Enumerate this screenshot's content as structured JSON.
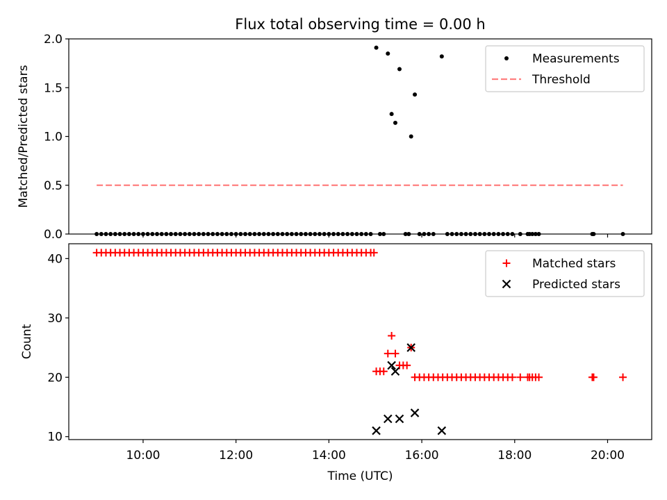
{
  "chart_data": [
    {
      "type": "scatter",
      "title": "Flux total observing time = 0.00 h",
      "ylabel": "Matched/Predicted stars",
      "xlabel": "",
      "xlim": [
        8.4,
        20.95
      ],
      "ylim": [
        0,
        2.0
      ],
      "yticks": [
        0.0,
        0.5,
        1.0,
        1.5,
        2.0
      ],
      "ytick_labels": [
        "0.0",
        "0.5",
        "1.0",
        "1.5",
        "2.0"
      ],
      "xticks": [
        10,
        12,
        14,
        16,
        18,
        20
      ],
      "legend_position": "top-right",
      "series": [
        {
          "name": "Measurements",
          "marker": "dot",
          "color": "#000000",
          "points": [
            [
              15.02,
              1.91
            ],
            [
              15.27,
              1.85
            ],
            [
              15.52,
              1.69
            ],
            [
              15.35,
              1.23
            ],
            [
              15.43,
              1.14
            ],
            [
              15.77,
              1.0
            ],
            [
              15.85,
              1.43
            ],
            [
              16.43,
              1.82
            ],
            [
              9.0,
              0.0
            ],
            [
              9.1,
              0.0
            ],
            [
              9.2,
              0.0
            ],
            [
              9.3,
              0.0
            ],
            [
              9.4,
              0.0
            ],
            [
              9.5,
              0.0
            ],
            [
              9.6,
              0.0
            ],
            [
              9.7,
              0.0
            ],
            [
              9.8,
              0.0
            ],
            [
              9.9,
              0.0
            ],
            [
              10.0,
              0.0
            ],
            [
              10.1,
              0.0
            ],
            [
              10.2,
              0.0
            ],
            [
              10.3,
              0.0
            ],
            [
              10.4,
              0.0
            ],
            [
              10.5,
              0.0
            ],
            [
              10.6,
              0.0
            ],
            [
              10.7,
              0.0
            ],
            [
              10.8,
              0.0
            ],
            [
              10.9,
              0.0
            ],
            [
              11.0,
              0.0
            ],
            [
              11.1,
              0.0
            ],
            [
              11.2,
              0.0
            ],
            [
              11.3,
              0.0
            ],
            [
              11.4,
              0.0
            ],
            [
              11.5,
              0.0
            ],
            [
              11.6,
              0.0
            ],
            [
              11.7,
              0.0
            ],
            [
              11.8,
              0.0
            ],
            [
              11.9,
              0.0
            ],
            [
              12.0,
              0.0
            ],
            [
              12.1,
              0.0
            ],
            [
              12.2,
              0.0
            ],
            [
              12.3,
              0.0
            ],
            [
              12.4,
              0.0
            ],
            [
              12.5,
              0.0
            ],
            [
              12.6,
              0.0
            ],
            [
              12.7,
              0.0
            ],
            [
              12.8,
              0.0
            ],
            [
              12.9,
              0.0
            ],
            [
              13.0,
              0.0
            ],
            [
              13.1,
              0.0
            ],
            [
              13.2,
              0.0
            ],
            [
              13.3,
              0.0
            ],
            [
              13.4,
              0.0
            ],
            [
              13.5,
              0.0
            ],
            [
              13.6,
              0.0
            ],
            [
              13.7,
              0.0
            ],
            [
              13.8,
              0.0
            ],
            [
              13.9,
              0.0
            ],
            [
              14.0,
              0.0
            ],
            [
              14.1,
              0.0
            ],
            [
              14.2,
              0.0
            ],
            [
              14.3,
              0.0
            ],
            [
              14.4,
              0.0
            ],
            [
              14.5,
              0.0
            ],
            [
              14.6,
              0.0
            ],
            [
              14.7,
              0.0
            ],
            [
              14.8,
              0.0
            ],
            [
              14.9,
              0.0
            ],
            [
              15.1,
              0.0
            ],
            [
              15.18,
              0.0
            ],
            [
              15.65,
              0.0
            ],
            [
              15.72,
              0.0
            ],
            [
              15.95,
              0.0
            ],
            [
              16.05,
              0.0
            ],
            [
              16.15,
              0.0
            ],
            [
              16.25,
              0.0
            ],
            [
              16.55,
              0.0
            ],
            [
              16.65,
              0.0
            ],
            [
              16.75,
              0.0
            ],
            [
              16.85,
              0.0
            ],
            [
              16.95,
              0.0
            ],
            [
              17.05,
              0.0
            ],
            [
              17.15,
              0.0
            ],
            [
              17.25,
              0.0
            ],
            [
              17.35,
              0.0
            ],
            [
              17.45,
              0.0
            ],
            [
              17.55,
              0.0
            ],
            [
              17.65,
              0.0
            ],
            [
              17.75,
              0.0
            ],
            [
              17.85,
              0.0
            ],
            [
              17.95,
              0.0
            ],
            [
              18.12,
              0.0
            ],
            [
              18.28,
              0.0
            ],
            [
              18.32,
              0.0
            ],
            [
              18.38,
              0.0
            ],
            [
              18.45,
              0.0
            ],
            [
              18.52,
              0.0
            ],
            [
              19.67,
              0.0
            ],
            [
              19.7,
              0.0
            ],
            [
              20.33,
              0.0
            ]
          ]
        },
        {
          "name": "Threshold",
          "marker": "dashed-line",
          "color": "#ff7f7f",
          "points": [
            [
              9.0,
              0.5
            ],
            [
              20.33,
              0.5
            ]
          ]
        }
      ]
    },
    {
      "type": "scatter",
      "title": "",
      "ylabel": "Count",
      "xlabel": "Time (UTC)",
      "xlim": [
        8.4,
        20.95
      ],
      "ylim": [
        9.5,
        42.5
      ],
      "yticks": [
        10,
        20,
        30,
        40
      ],
      "ytick_labels": [
        "10",
        "20",
        "30",
        "40"
      ],
      "xticks": [
        10,
        12,
        14,
        16,
        18,
        20
      ],
      "xtick_labels": [
        "10:00",
        "12:00",
        "14:00",
        "16:00",
        "18:00",
        "20:00"
      ],
      "legend_position": "top-right",
      "series": [
        {
          "name": "Matched stars",
          "marker": "plus",
          "color": "#ff0000",
          "points": [
            [
              9.0,
              41
            ],
            [
              9.1,
              41
            ],
            [
              9.2,
              41
            ],
            [
              9.3,
              41
            ],
            [
              9.4,
              41
            ],
            [
              9.5,
              41
            ],
            [
              9.6,
              41
            ],
            [
              9.7,
              41
            ],
            [
              9.8,
              41
            ],
            [
              9.9,
              41
            ],
            [
              10.0,
              41
            ],
            [
              10.1,
              41
            ],
            [
              10.2,
              41
            ],
            [
              10.3,
              41
            ],
            [
              10.4,
              41
            ],
            [
              10.5,
              41
            ],
            [
              10.6,
              41
            ],
            [
              10.7,
              41
            ],
            [
              10.8,
              41
            ],
            [
              10.9,
              41
            ],
            [
              11.0,
              41
            ],
            [
              11.1,
              41
            ],
            [
              11.2,
              41
            ],
            [
              11.3,
              41
            ],
            [
              11.4,
              41
            ],
            [
              11.5,
              41
            ],
            [
              11.6,
              41
            ],
            [
              11.7,
              41
            ],
            [
              11.8,
              41
            ],
            [
              11.9,
              41
            ],
            [
              12.0,
              41
            ],
            [
              12.1,
              41
            ],
            [
              12.2,
              41
            ],
            [
              12.3,
              41
            ],
            [
              12.4,
              41
            ],
            [
              12.5,
              41
            ],
            [
              12.6,
              41
            ],
            [
              12.7,
              41
            ],
            [
              12.8,
              41
            ],
            [
              12.9,
              41
            ],
            [
              13.0,
              41
            ],
            [
              13.1,
              41
            ],
            [
              13.2,
              41
            ],
            [
              13.3,
              41
            ],
            [
              13.4,
              41
            ],
            [
              13.5,
              41
            ],
            [
              13.6,
              41
            ],
            [
              13.7,
              41
            ],
            [
              13.8,
              41
            ],
            [
              13.9,
              41
            ],
            [
              14.0,
              41
            ],
            [
              14.1,
              41
            ],
            [
              14.2,
              41
            ],
            [
              14.3,
              41
            ],
            [
              14.4,
              41
            ],
            [
              14.5,
              41
            ],
            [
              14.6,
              41
            ],
            [
              14.7,
              41
            ],
            [
              14.8,
              41
            ],
            [
              14.9,
              41
            ],
            [
              14.97,
              41
            ],
            [
              15.02,
              21
            ],
            [
              15.1,
              21
            ],
            [
              15.18,
              21
            ],
            [
              15.27,
              24
            ],
            [
              15.35,
              27
            ],
            [
              15.43,
              24
            ],
            [
              15.52,
              22
            ],
            [
              15.6,
              22
            ],
            [
              15.68,
              22
            ],
            [
              15.77,
              25
            ],
            [
              15.85,
              20
            ],
            [
              15.95,
              20
            ],
            [
              16.05,
              20
            ],
            [
              16.15,
              20
            ],
            [
              16.25,
              20
            ],
            [
              16.35,
              20
            ],
            [
              16.45,
              20
            ],
            [
              16.55,
              20
            ],
            [
              16.65,
              20
            ],
            [
              16.75,
              20
            ],
            [
              16.85,
              20
            ],
            [
              16.95,
              20
            ],
            [
              17.05,
              20
            ],
            [
              17.15,
              20
            ],
            [
              17.25,
              20
            ],
            [
              17.35,
              20
            ],
            [
              17.45,
              20
            ],
            [
              17.55,
              20
            ],
            [
              17.65,
              20
            ],
            [
              17.75,
              20
            ],
            [
              17.85,
              20
            ],
            [
              17.95,
              20
            ],
            [
              18.12,
              20
            ],
            [
              18.28,
              20
            ],
            [
              18.32,
              20
            ],
            [
              18.38,
              20
            ],
            [
              18.45,
              20
            ],
            [
              18.52,
              20
            ],
            [
              19.67,
              20
            ],
            [
              19.7,
              20
            ],
            [
              20.33,
              20
            ]
          ]
        },
        {
          "name": "Predicted stars",
          "marker": "x",
          "color": "#000000",
          "points": [
            [
              15.02,
              11
            ],
            [
              15.27,
              13
            ],
            [
              15.35,
              22
            ],
            [
              15.43,
              21
            ],
            [
              15.52,
              13
            ],
            [
              15.77,
              25
            ],
            [
              15.85,
              14
            ],
            [
              16.43,
              11
            ]
          ]
        }
      ]
    }
  ]
}
